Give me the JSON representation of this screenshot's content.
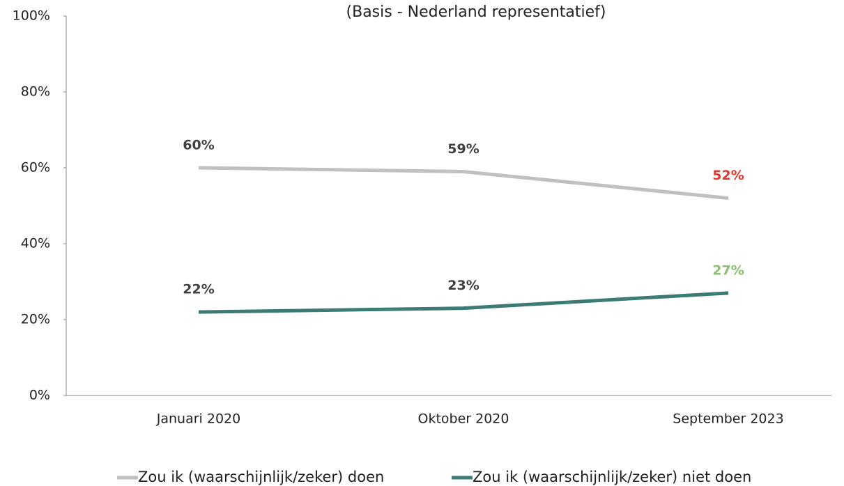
{
  "chart_data": {
    "type": "line",
    "subtitle": "(Basis - Nederland representatief)",
    "categories": [
      "Januari 2020",
      "Oktober 2020",
      "September 2023"
    ],
    "series": [
      {
        "name": "Zou ik (waarschijnlijk/zeker) doen",
        "color": "#c0c0c0",
        "values": [
          60,
          59,
          52
        ],
        "value_labels": [
          "60%",
          "59%",
          "52%"
        ],
        "value_label_colors": [
          "#404040",
          "#404040",
          "#e0372a"
        ]
      },
      {
        "name": "Zou ik (waarschijnlijk/zeker) niet doen",
        "color": "#3c7a74",
        "values": [
          22,
          23,
          27
        ],
        "value_labels": [
          "22%",
          "23%",
          "27%"
        ],
        "value_label_colors": [
          "#404040",
          "#404040",
          "#8cbf6e"
        ]
      }
    ],
    "ylim": [
      0,
      100
    ],
    "yticks": [
      {
        "value": 0,
        "label": "0%"
      },
      {
        "value": 20,
        "label": "20%"
      },
      {
        "value": 40,
        "label": "40%"
      },
      {
        "value": 60,
        "label": "60%"
      },
      {
        "value": 80,
        "label": "80%"
      },
      {
        "value": 100,
        "label": "100%"
      }
    ],
    "grid": false,
    "legend": "bottom"
  }
}
